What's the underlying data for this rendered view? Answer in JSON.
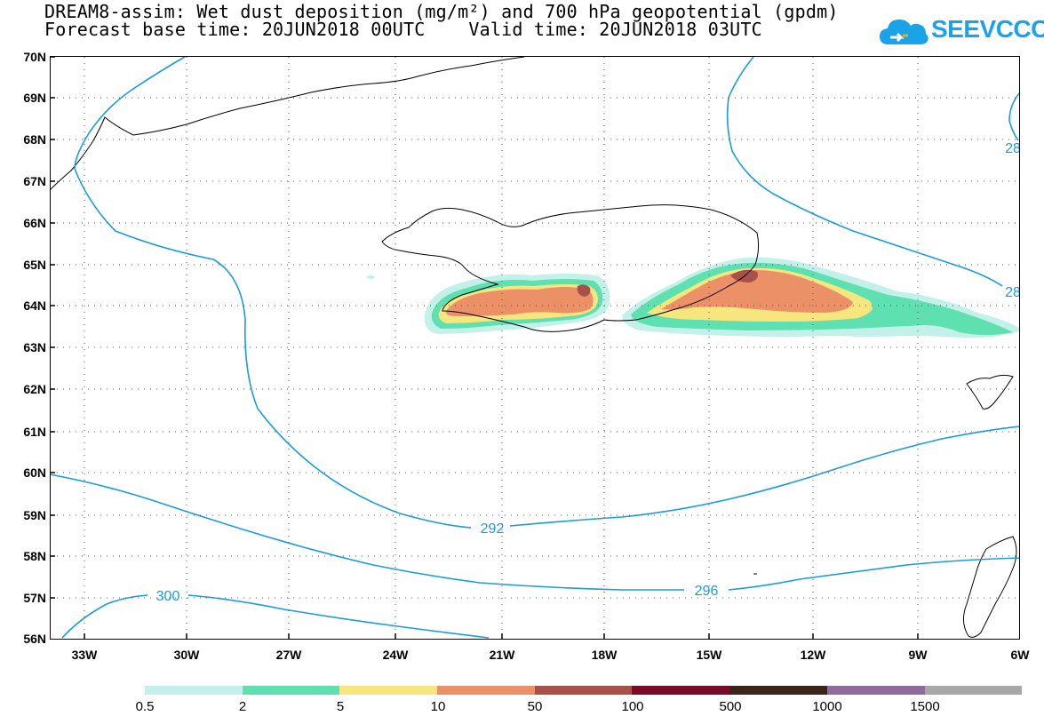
{
  "title": {
    "line1": "DREAM8-assim: Wet dust deposition (mg/m²) and 700 hPa geopotential (gpdm)",
    "line2": "Forecast base time: 20JUN2018 00UTC    Valid time: 20JUN2018 03UTC"
  },
  "logo": {
    "text": "SEEVCCC",
    "icon": "cloud-icon"
  },
  "map": {
    "lat_labels": [
      "70N",
      "69N",
      "68N",
      "67N",
      "66N",
      "65N",
      "64N",
      "63N",
      "62N",
      "61N",
      "60N",
      "59N",
      "58N",
      "57N",
      "56N"
    ],
    "lon_labels": [
      "33W",
      "30W",
      "27W",
      "24W",
      "21W",
      "18W",
      "15W",
      "12W",
      "9W",
      "6W"
    ],
    "contour_labels": [
      "292",
      "296",
      "300",
      "28",
      "28"
    ]
  },
  "legend": {
    "colors": [
      "#c4f0ea",
      "#5ee0b0",
      "#f7e57e",
      "#ec9068",
      "#a8504a",
      "#7a0a26",
      "#3b2418",
      "#8e6c9c",
      "#a8a8a8"
    ],
    "labels": [
      "0.5",
      "2",
      "5",
      "10",
      "50",
      "100",
      "500",
      "1000",
      "1500"
    ]
  }
}
